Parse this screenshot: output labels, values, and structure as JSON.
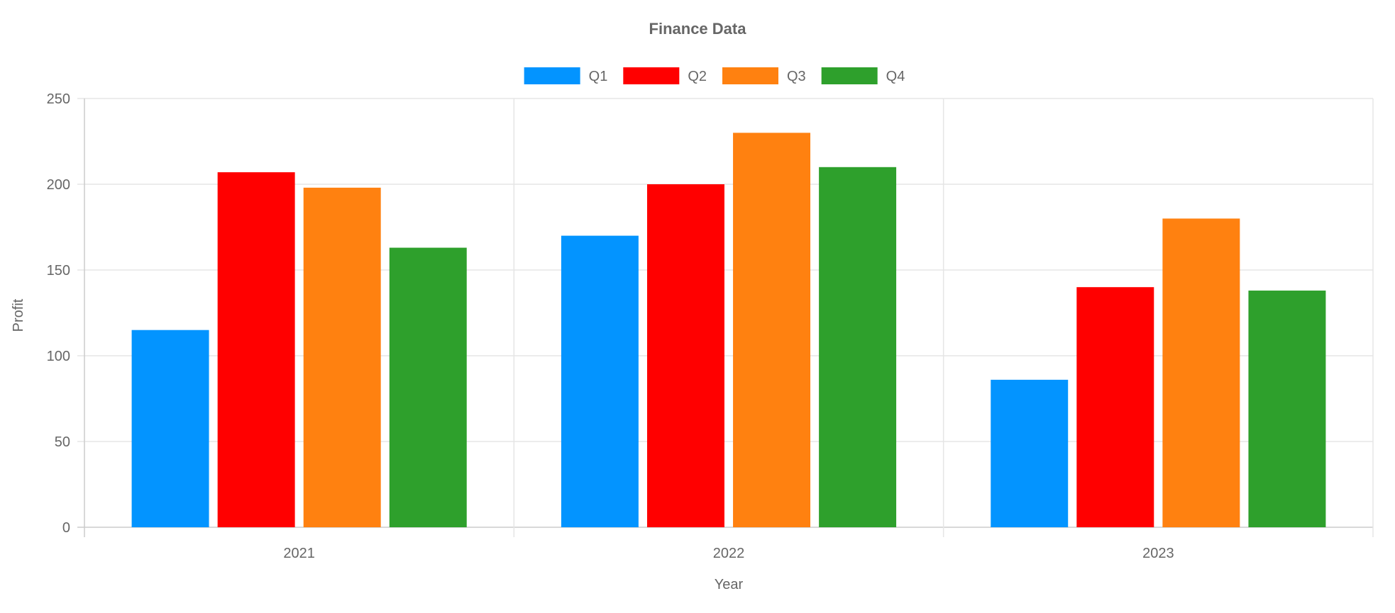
{
  "chart_data": {
    "type": "bar",
    "title": "Finance Data",
    "xlabel": "Year",
    "ylabel": "Profit",
    "categories": [
      "2021",
      "2022",
      "2023"
    ],
    "series": [
      {
        "name": "Q1",
        "color": "#0394ff",
        "values": [
          115,
          170,
          86
        ]
      },
      {
        "name": "Q2",
        "color": "#ff0000",
        "values": [
          207,
          200,
          140
        ]
      },
      {
        "name": "Q3",
        "color": "#ff8110",
        "values": [
          198,
          230,
          180
        ]
      },
      {
        "name": "Q4",
        "color": "#2ea02c",
        "values": [
          163,
          210,
          138
        ]
      }
    ],
    "ylim": [
      0,
      250
    ],
    "yticks": [
      "0",
      "50",
      "100",
      "150",
      "200",
      "250"
    ],
    "grid": true,
    "legend_position": "top"
  }
}
